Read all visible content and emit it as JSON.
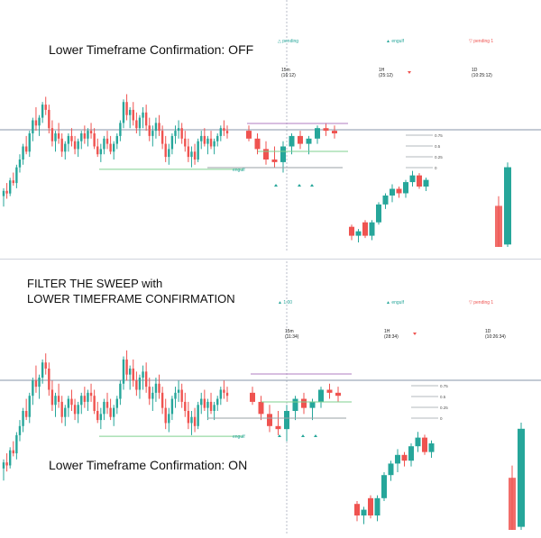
{
  "colors": {
    "bull": "#26a69a",
    "bear": "#ef5350",
    "level_line": "#8796a8",
    "purple_line": "#b07cc0",
    "green_line": "#7fd18f",
    "grey_line": "#9aa0a6",
    "crosshair": "#b8bcc8",
    "pending_marker": "#26a69a",
    "pending_down": "#ef5350"
  },
  "panels": [
    {
      "id": "top",
      "heading": "Lower Timeframe Confirmation: OFF",
      "caption_lines": [],
      "legend_left": "△ pending",
      "legend_mid": "▲ engulf",
      "legend_right": "▽ pending 1",
      "tf_labels": [
        {
          "tf": "15m",
          "time": "(16:12)"
        },
        {
          "tf": "1H",
          "time": "(25:12)"
        },
        {
          "tf": "1D",
          "time": "(10:25:12)"
        }
      ],
      "engulf_label": "engulf",
      "level_labels": [
        "0.75",
        "0.5",
        "0.25",
        "0"
      ]
    },
    {
      "id": "bottom",
      "heading": "Lower Timeframe Confirmation: ON",
      "caption_lines": [
        "FILTER THE SWEEP with",
        "LOWER TIMEFRAME CONFIRMATION"
      ],
      "legend_left": "▲ 1.00",
      "legend_mid": "▲ engulf",
      "legend_right": "▽ pending 1",
      "tf_labels": [
        {
          "tf": "15m",
          "time": "(11:34)"
        },
        {
          "tf": "1H",
          "time": "(28:34)"
        },
        {
          "tf": "1D",
          "time": "(10:26:34)"
        }
      ],
      "engulf_label": "engulf",
      "level_labels": [
        "0.75",
        "0.5",
        "0.25",
        "0"
      ]
    }
  ],
  "chart_data": {
    "type": "candlestick",
    "title": "",
    "xlabel": "",
    "ylabel": "",
    "note": "Relative price levels read from the chart; 0 = panel bottom, 100 = panel top. Same main series in both panels.",
    "main_series": [
      {
        "o": 12,
        "h": 18,
        "l": 4,
        "c": 16
      },
      {
        "o": 16,
        "h": 22,
        "l": 10,
        "c": 14
      },
      {
        "o": 14,
        "h": 26,
        "l": 12,
        "c": 24
      },
      {
        "o": 24,
        "h": 30,
        "l": 20,
        "c": 22
      },
      {
        "o": 22,
        "h": 36,
        "l": 18,
        "c": 34
      },
      {
        "o": 34,
        "h": 44,
        "l": 30,
        "c": 40
      },
      {
        "o": 40,
        "h": 52,
        "l": 36,
        "c": 50
      },
      {
        "o": 50,
        "h": 58,
        "l": 44,
        "c": 46
      },
      {
        "o": 46,
        "h": 62,
        "l": 42,
        "c": 60
      },
      {
        "o": 60,
        "h": 72,
        "l": 54,
        "c": 70
      },
      {
        "o": 70,
        "h": 80,
        "l": 62,
        "c": 66
      },
      {
        "o": 66,
        "h": 74,
        "l": 58,
        "c": 72
      },
      {
        "o": 72,
        "h": 84,
        "l": 68,
        "c": 82
      },
      {
        "o": 82,
        "h": 88,
        "l": 74,
        "c": 78
      },
      {
        "o": 78,
        "h": 82,
        "l": 60,
        "c": 64
      },
      {
        "o": 64,
        "h": 70,
        "l": 50,
        "c": 54
      },
      {
        "o": 54,
        "h": 62,
        "l": 46,
        "c": 60
      },
      {
        "o": 60,
        "h": 68,
        "l": 52,
        "c": 56
      },
      {
        "o": 56,
        "h": 60,
        "l": 42,
        "c": 46
      },
      {
        "o": 46,
        "h": 54,
        "l": 40,
        "c": 52
      },
      {
        "o": 52,
        "h": 60,
        "l": 46,
        "c": 58
      },
      {
        "o": 58,
        "h": 64,
        "l": 50,
        "c": 54
      },
      {
        "o": 54,
        "h": 58,
        "l": 44,
        "c": 48
      },
      {
        "o": 48,
        "h": 56,
        "l": 42,
        "c": 54
      },
      {
        "o": 54,
        "h": 62,
        "l": 48,
        "c": 60
      },
      {
        "o": 60,
        "h": 66,
        "l": 52,
        "c": 56
      },
      {
        "o": 56,
        "h": 64,
        "l": 50,
        "c": 62
      },
      {
        "o": 62,
        "h": 68,
        "l": 56,
        "c": 60
      },
      {
        "o": 60,
        "h": 64,
        "l": 48,
        "c": 50
      },
      {
        "o": 50,
        "h": 56,
        "l": 42,
        "c": 44
      },
      {
        "o": 44,
        "h": 52,
        "l": 38,
        "c": 48
      },
      {
        "o": 48,
        "h": 58,
        "l": 44,
        "c": 56
      },
      {
        "o": 56,
        "h": 62,
        "l": 48,
        "c": 52
      },
      {
        "o": 52,
        "h": 58,
        "l": 44,
        "c": 46
      },
      {
        "o": 46,
        "h": 54,
        "l": 40,
        "c": 52
      },
      {
        "o": 52,
        "h": 60,
        "l": 48,
        "c": 58
      },
      {
        "o": 58,
        "h": 70,
        "l": 54,
        "c": 68
      },
      {
        "o": 68,
        "h": 86,
        "l": 64,
        "c": 84
      },
      {
        "o": 84,
        "h": 90,
        "l": 70,
        "c": 74
      },
      {
        "o": 74,
        "h": 80,
        "l": 64,
        "c": 78
      },
      {
        "o": 78,
        "h": 84,
        "l": 66,
        "c": 70
      },
      {
        "o": 70,
        "h": 76,
        "l": 60,
        "c": 64
      },
      {
        "o": 64,
        "h": 74,
        "l": 58,
        "c": 72
      },
      {
        "o": 72,
        "h": 80,
        "l": 64,
        "c": 76
      },
      {
        "o": 76,
        "h": 82,
        "l": 62,
        "c": 66
      },
      {
        "o": 66,
        "h": 72,
        "l": 54,
        "c": 58
      },
      {
        "o": 58,
        "h": 66,
        "l": 50,
        "c": 62
      },
      {
        "o": 62,
        "h": 72,
        "l": 56,
        "c": 68
      },
      {
        "o": 68,
        "h": 74,
        "l": 58,
        "c": 62
      },
      {
        "o": 62,
        "h": 66,
        "l": 48,
        "c": 52
      },
      {
        "o": 52,
        "h": 58,
        "l": 38,
        "c": 42
      },
      {
        "o": 42,
        "h": 52,
        "l": 36,
        "c": 48
      },
      {
        "o": 48,
        "h": 60,
        "l": 44,
        "c": 58
      },
      {
        "o": 58,
        "h": 66,
        "l": 52,
        "c": 62
      },
      {
        "o": 62,
        "h": 70,
        "l": 56,
        "c": 64
      },
      {
        "o": 64,
        "h": 68,
        "l": 52,
        "c": 56
      },
      {
        "o": 56,
        "h": 62,
        "l": 46,
        "c": 50
      },
      {
        "o": 50,
        "h": 56,
        "l": 38,
        "c": 42
      },
      {
        "o": 42,
        "h": 50,
        "l": 34,
        "c": 46
      },
      {
        "o": 46,
        "h": 52,
        "l": 36,
        "c": 40
      },
      {
        "o": 40,
        "h": 56,
        "l": 38,
        "c": 54
      },
      {
        "o": 54,
        "h": 62,
        "l": 48,
        "c": 58
      },
      {
        "o": 58,
        "h": 64,
        "l": 50,
        "c": 52
      },
      {
        "o": 52,
        "h": 58,
        "l": 44,
        "c": 56
      },
      {
        "o": 56,
        "h": 62,
        "l": 48,
        "c": 50
      },
      {
        "o": 50,
        "h": 56,
        "l": 44,
        "c": 54
      },
      {
        "o": 54,
        "h": 60,
        "l": 50,
        "c": 58
      },
      {
        "o": 58,
        "h": 66,
        "l": 54,
        "c": 64
      },
      {
        "o": 64,
        "h": 70,
        "l": 58,
        "c": 62
      },
      {
        "o": 62,
        "h": 66,
        "l": 56,
        "c": 60
      }
    ],
    "htf_candles": [
      {
        "o": 62,
        "h": 66,
        "l": 54,
        "c": 56
      },
      {
        "o": 56,
        "h": 60,
        "l": 44,
        "c": 48
      },
      {
        "o": 48,
        "h": 54,
        "l": 36,
        "c": 40
      },
      {
        "o": 40,
        "h": 50,
        "l": 34,
        "c": 38
      },
      {
        "o": 38,
        "h": 54,
        "l": 30,
        "c": 50
      },
      {
        "o": 50,
        "h": 60,
        "l": 44,
        "c": 58
      },
      {
        "o": 58,
        "h": 62,
        "l": 48,
        "c": 52
      },
      {
        "o": 52,
        "h": 58,
        "l": 44,
        "c": 56
      },
      {
        "o": 56,
        "h": 66,
        "l": 52,
        "c": 64
      },
      {
        "o": 64,
        "h": 68,
        "l": 58,
        "c": 62
      },
      {
        "o": 62,
        "h": 66,
        "l": 56,
        "c": 60
      }
    ],
    "lower_candles": [
      {
        "o": 18,
        "h": 20,
        "l": 6,
        "c": 10
      },
      {
        "o": 10,
        "h": 16,
        "l": 4,
        "c": 14
      },
      {
        "o": 22,
        "h": 24,
        "l": 8,
        "c": 10
      },
      {
        "o": 10,
        "h": 24,
        "l": 6,
        "c": 22
      },
      {
        "o": 22,
        "h": 40,
        "l": 20,
        "c": 38
      },
      {
        "o": 38,
        "h": 48,
        "l": 34,
        "c": 46
      },
      {
        "o": 46,
        "h": 56,
        "l": 40,
        "c": 52
      },
      {
        "o": 52,
        "h": 54,
        "l": 44,
        "c": 48
      },
      {
        "o": 48,
        "h": 60,
        "l": 44,
        "c": 58
      },
      {
        "o": 58,
        "h": 68,
        "l": 54,
        "c": 64
      },
      {
        "o": 64,
        "h": 66,
        "l": 52,
        "c": 54
      },
      {
        "o": 54,
        "h": 62,
        "l": 50,
        "c": 60
      }
    ],
    "daily_candles": [
      {
        "o": 34,
        "h": 42,
        "l": 0,
        "c": 0
      },
      {
        "o": 2,
        "h": 70,
        "l": 0,
        "c": 66
      }
    ]
  }
}
